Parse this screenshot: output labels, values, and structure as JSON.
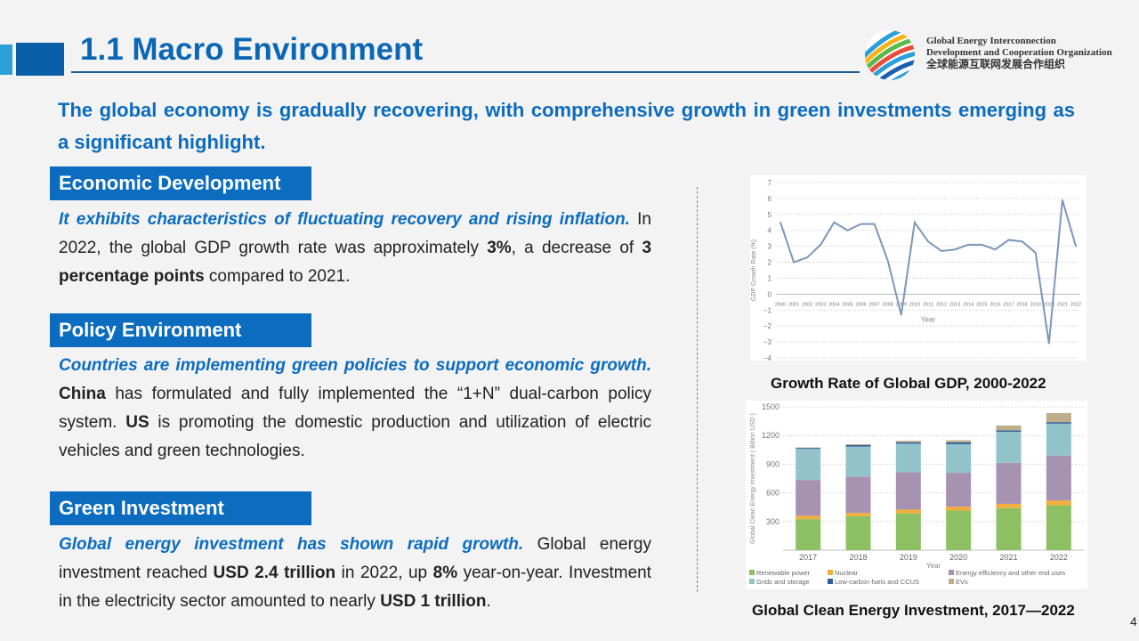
{
  "header": {
    "title": "1.1 Macro Environment",
    "org_lines": [
      "Global Energy Interconnection",
      "Development and Cooperation Organization",
      "全球能源互联网发展合作组织"
    ]
  },
  "headline": "The global economy is gradually recovering, with comprehensive growth in green investments emerging as a significant highlight.",
  "sections": [
    {
      "title": "Economic Development",
      "lead": "It exhibits characteristics of fluctuating recovery and rising inflation.",
      "parts": [
        " In 2022, the global GDP growth rate was approximately ",
        "3%",
        ", a decrease of ",
        "3 percentage points",
        " compared to 2021."
      ]
    },
    {
      "title": "Policy Environment",
      "lead": "Countries are implementing green policies to support economic growth.",
      "parts": [
        " ",
        "China",
        " has formulated and fully implemented the “1+N” dual-carbon policy system. ",
        "US",
        " is promoting the domestic production and utilization of electric vehicles and green technologies."
      ]
    },
    {
      "title": "Green Investment",
      "lead": "Global energy investment has shown rapid growth.",
      "parts": [
        " Global energy investment reached ",
        "USD 2.4 trillion",
        " in 2022, up ",
        "8%",
        " year-on-year. Investment in the electricity sector amounted to nearly ",
        "USD 1 trillion",
        "."
      ]
    }
  ],
  "page_number": "4",
  "chart_data": [
    {
      "type": "line",
      "caption": "Growth Rate of Global GDP, 2000-2022",
      "xlabel": "Year",
      "ylabel": "GDP Growth Rate (%)",
      "ylim": [
        -4,
        7
      ],
      "yticks": [
        7,
        6,
        5,
        4,
        3,
        2,
        1,
        0,
        -1,
        -2,
        -3,
        -4
      ],
      "grid": true,
      "color": "#7b97b9",
      "x": [
        "2000",
        "2001",
        "2002",
        "2003",
        "2004",
        "2005",
        "2006",
        "2007",
        "2008",
        "2009",
        "2010",
        "2011",
        "2012",
        "2013",
        "2014",
        "2015",
        "2016",
        "2017",
        "2018",
        "2019",
        "2020",
        "2021",
        "2022"
      ],
      "values": [
        4.5,
        2.0,
        2.3,
        3.1,
        4.5,
        4.0,
        4.4,
        4.4,
        2.1,
        -1.3,
        4.5,
        3.3,
        2.7,
        2.8,
        3.1,
        3.1,
        2.8,
        3.4,
        3.3,
        2.6,
        -3.1,
        5.9,
        3.0
      ]
    },
    {
      "type": "bar",
      "stacked": true,
      "caption": "Global Clean Energy Investment, 2017—2022",
      "xlabel": "Year",
      "ylabel": "Global Clean Energy Investment ( Billion USD )",
      "ylim": [
        0,
        1500
      ],
      "yticks": [
        1500,
        1200,
        900,
        600,
        300
      ],
      "grid": true,
      "legend": "bottom",
      "categories": [
        "2017",
        "2018",
        "2019",
        "2020",
        "2021",
        "2022"
      ],
      "series": [
        {
          "name": "Renewable power",
          "color": "#8cc063",
          "values": [
            325,
            355,
            385,
            415,
            440,
            470
          ]
        },
        {
          "name": "Nuclear",
          "color": "#f2ae3c",
          "values": [
            35,
            35,
            40,
            40,
            45,
            50
          ]
        },
        {
          "name": "Energy efficiency and other end uses",
          "color": "#a892b2",
          "values": [
            375,
            380,
            390,
            355,
            430,
            470
          ]
        },
        {
          "name": "Grids and storage",
          "color": "#93c3ca",
          "values": [
            325,
            315,
            300,
            300,
            325,
            335
          ]
        },
        {
          "name": "Low-carbon fuels and CCUS",
          "color": "#2e5c9a",
          "values": [
            10,
            15,
            15,
            20,
            15,
            15
          ]
        },
        {
          "name": "EVs",
          "color": "#bfae8a",
          "values": [
            5,
            10,
            15,
            20,
            50,
            95
          ]
        }
      ]
    }
  ]
}
